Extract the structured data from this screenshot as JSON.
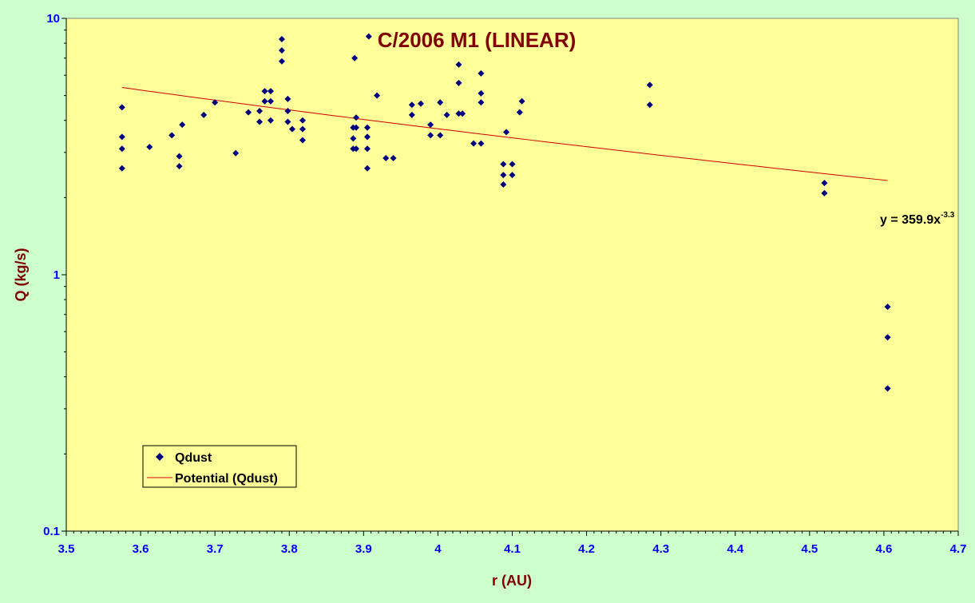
{
  "colors": {
    "page_background": "#ccffcc",
    "plot_background": "#ffff99",
    "title": "#800000",
    "axis_title": "#800000",
    "tick_labels": "#0000ff",
    "points": "#000080",
    "trendline": "#cc0000"
  },
  "chart_data": {
    "type": "scatter",
    "title": "C/2006 M1 (LINEAR)",
    "xlabel": "r (AU)",
    "ylabel": "Q (kg/s)",
    "xlim": [
      3.5,
      4.7
    ],
    "ylim": [
      0.1,
      10
    ],
    "y_scale": "log",
    "grid": false,
    "legend_position": "bottom-left",
    "x_ticks": [
      "3.5",
      "3.6",
      "3.7",
      "3.8",
      "3.9",
      "4",
      "4.1",
      "4.2",
      "4.3",
      "4.4",
      "4.5",
      "4.6",
      "4.7"
    ],
    "y_ticks": [
      "0.1",
      "1",
      "10"
    ],
    "series": [
      {
        "name": "Qdust",
        "marker": "diamond",
        "points": [
          [
            3.575,
            4.5
          ],
          [
            3.575,
            3.45
          ],
          [
            3.575,
            3.1
          ],
          [
            3.575,
            2.6
          ],
          [
            3.612,
            3.15
          ],
          [
            3.642,
            3.5
          ],
          [
            3.652,
            2.9
          ],
          [
            3.652,
            2.65
          ],
          [
            3.656,
            3.85
          ],
          [
            3.685,
            4.2
          ],
          [
            3.7,
            4.7
          ],
          [
            3.728,
            2.98
          ],
          [
            3.745,
            4.3
          ],
          [
            3.76,
            4.35
          ],
          [
            3.76,
            3.95
          ],
          [
            3.767,
            5.2
          ],
          [
            3.767,
            4.75
          ],
          [
            3.775,
            5.2
          ],
          [
            3.775,
            4.75
          ],
          [
            3.775,
            4.0
          ],
          [
            3.79,
            8.3
          ],
          [
            3.79,
            7.5
          ],
          [
            3.79,
            6.8
          ],
          [
            3.798,
            4.85
          ],
          [
            3.798,
            4.35
          ],
          [
            3.798,
            3.95
          ],
          [
            3.804,
            3.7
          ],
          [
            3.818,
            4.0
          ],
          [
            3.818,
            3.7
          ],
          [
            3.818,
            3.35
          ],
          [
            3.886,
            3.75
          ],
          [
            3.886,
            3.4
          ],
          [
            3.886,
            3.1
          ],
          [
            3.888,
            7.0
          ],
          [
            3.89,
            4.1
          ],
          [
            3.89,
            3.75
          ],
          [
            3.89,
            3.1
          ],
          [
            3.905,
            3.75
          ],
          [
            3.905,
            3.45
          ],
          [
            3.905,
            3.1
          ],
          [
            3.905,
            2.6
          ],
          [
            3.907,
            8.5
          ],
          [
            3.918,
            5.0
          ],
          [
            3.93,
            2.85
          ],
          [
            3.94,
            2.85
          ],
          [
            3.965,
            4.6
          ],
          [
            3.965,
            4.2
          ],
          [
            3.977,
            4.65
          ],
          [
            3.99,
            3.85
          ],
          [
            3.99,
            3.5
          ],
          [
            4.003,
            4.7
          ],
          [
            4.003,
            3.5
          ],
          [
            4.012,
            4.2
          ],
          [
            4.028,
            6.6
          ],
          [
            4.028,
            5.6
          ],
          [
            4.028,
            4.25
          ],
          [
            4.033,
            4.25
          ],
          [
            4.048,
            3.25
          ],
          [
            4.058,
            6.1
          ],
          [
            4.058,
            5.1
          ],
          [
            4.058,
            4.7
          ],
          [
            4.058,
            3.25
          ],
          [
            4.088,
            2.7
          ],
          [
            4.088,
            2.45
          ],
          [
            4.088,
            2.25
          ],
          [
            4.092,
            3.6
          ],
          [
            4.1,
            2.7
          ],
          [
            4.1,
            2.45
          ],
          [
            4.11,
            4.3
          ],
          [
            4.113,
            4.75
          ],
          [
            4.285,
            5.5
          ],
          [
            4.285,
            4.6
          ],
          [
            4.52,
            2.28
          ],
          [
            4.52,
            2.08
          ],
          [
            4.605,
            0.75
          ],
          [
            4.605,
            0.57
          ],
          [
            4.605,
            0.36
          ]
        ]
      },
      {
        "name": "Potential (Qdust)",
        "type": "line",
        "fit": "power",
        "coefficient": 359.9,
        "exponent": -3.3,
        "x_range": [
          3.575,
          4.605
        ]
      }
    ],
    "annotations": [
      {
        "id": "equation",
        "base": "y = 359.9x",
        "superscript": "-3.3"
      }
    ]
  }
}
